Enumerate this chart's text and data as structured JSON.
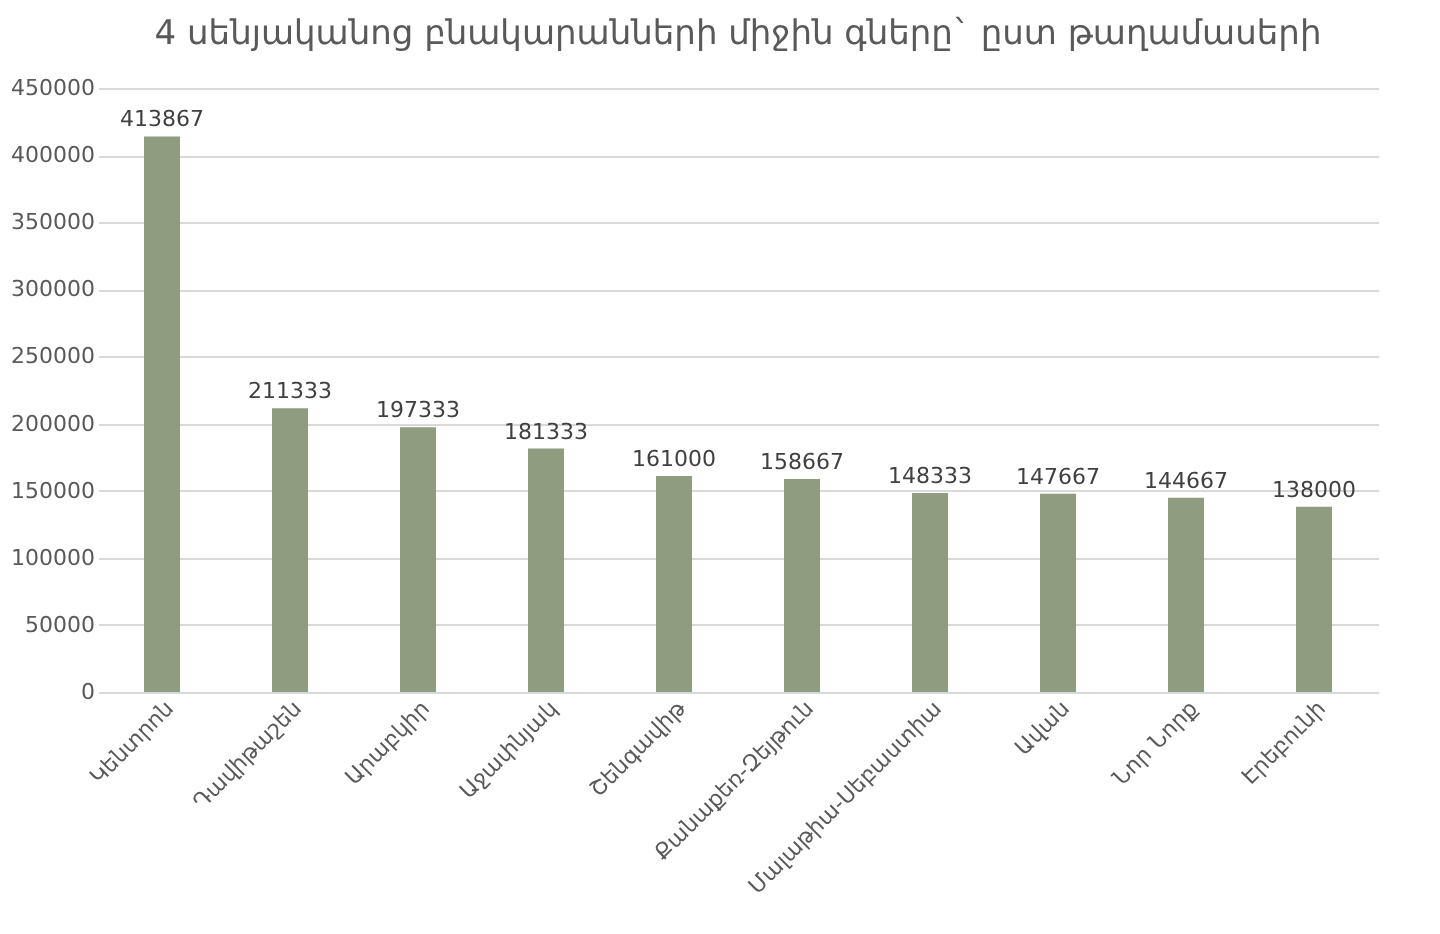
{
  "chart_data": {
    "type": "bar",
    "title": "4 սենյականոց բնակարանների միջին գները` ըստ թաղամասերի",
    "categories": [
      "Կենտրոն",
      "Դավիթաշեն",
      "Արաբկիր",
      "Աջափնյակ",
      "Շենգավիթ",
      "Քանաքեռ-Զեյթուն",
      "Մալաթիա-Սեբաստիա",
      "Ավան",
      "Նոր Նորք",
      "Էրեբունի"
    ],
    "values": [
      413867,
      211333,
      197333,
      181333,
      161000,
      158667,
      148333,
      147667,
      144667,
      138000
    ],
    "color": "#8f9c80",
    "ylim": [
      0,
      450000
    ],
    "yticks": [
      0,
      50000,
      100000,
      150000,
      200000,
      250000,
      300000,
      350000,
      400000,
      450000
    ],
    "grid": "y",
    "data_labels": true
  }
}
